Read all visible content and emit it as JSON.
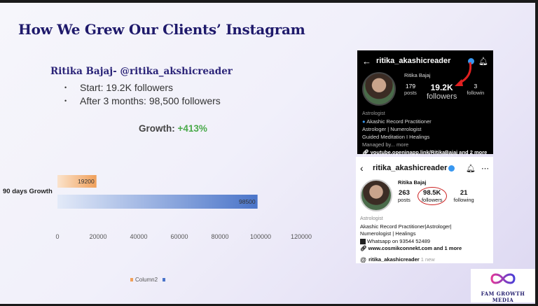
{
  "slide": {
    "title": "How We Grew Our Clients’ Instagram",
    "client_name": "Ritika Bajaj- @ritika_akshicreader",
    "bullets": [
      "Start: 19.2K followers",
      "After 3 months: 98,500 followers"
    ],
    "growth_label": "Growth:",
    "growth_value": "+413%",
    "growth_color": "#4aaa4a",
    "title_color": "#1f1a6b"
  },
  "chart_data": {
    "type": "bar",
    "orientation": "horizontal",
    "categories": [
      "90 days Growth"
    ],
    "series": [
      {
        "name": "Column2",
        "values": [
          19200
        ],
        "color": "#f0a05a",
        "data_label": "19200"
      },
      {
        "name": "",
        "values": [
          98500
        ],
        "color": "#4a74c9",
        "data_label": "98500"
      }
    ],
    "xlim": [
      0,
      120000
    ],
    "xticks": [
      "0",
      "20000",
      "40000",
      "60000",
      "80000",
      "100000",
      "120000"
    ],
    "legend_position": "bottom",
    "grid": false
  },
  "ig_dark": {
    "username": "ritika_akashicreader",
    "name": "Ritika Bajaj",
    "posts_count": "179",
    "posts_label": "posts",
    "followers_count": "19.2K",
    "followers_label": "followers",
    "following_count": "3",
    "following_label": "followin",
    "category": "Astrologist",
    "bio_lines": [
      "Akashic Record Practitioner",
      "Astrologer | Numerologist",
      "Guided Meditation I Healings",
      "Managed by... more"
    ],
    "link": "youtube.openinapp.link/RitikaBajaj and 2 more"
  },
  "ig_light": {
    "username": "ritika_akashicreader",
    "name": "Ritika Bajaj",
    "posts_count": "263",
    "posts_label": "posts",
    "followers_count": "98.5K",
    "followers_label": "followers",
    "following_count": "21",
    "following_label": "following",
    "category": "Astrologist",
    "bio_lines": [
      "Akashic Record Practitioner|Astrologer|",
      "Numerologist | Healings"
    ],
    "whatsapp": "Whatsapp on 93544 52489",
    "link": "www.cosmikconnekt.com and 1 more",
    "threads_handle": "ritika_akashicreader",
    "threads_new": "1 new"
  },
  "logo": {
    "text": "FAM GROWTH MEDIA"
  }
}
